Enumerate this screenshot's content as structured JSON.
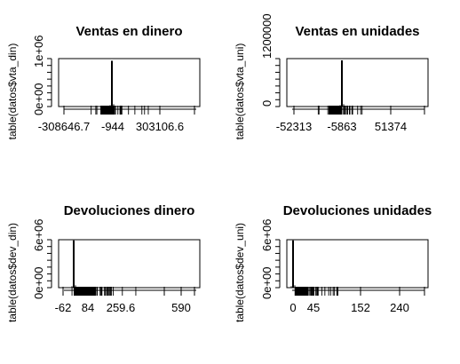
{
  "chart_data": [
    {
      "type": "bar",
      "title": "Ventas en dinero",
      "ylabel": "table(datos$vta_din)",
      "xlabel": "",
      "x_tick_labels": [
        "-308646.7",
        "-944",
        "303106.6"
      ],
      "y_tick_labels": [
        "0e+00",
        "1e+06"
      ],
      "ylim": [
        0,
        1100000
      ],
      "spike": {
        "x_label": "-944",
        "value": 1050000
      },
      "grid": false,
      "legend": "none"
    },
    {
      "type": "bar",
      "title": "Ventas en unidades",
      "ylabel": "table(datos$vta_uni)",
      "xlabel": "",
      "x_tick_labels": [
        "-52313",
        "-5863",
        "51374"
      ],
      "y_tick_labels": [
        "0",
        "1200000"
      ],
      "ylim": [
        0,
        1400000
      ],
      "spike": {
        "x_label": "-5863",
        "value": 1350000
      },
      "grid": false,
      "legend": "none"
    },
    {
      "type": "bar",
      "title": "Devoluciones dinero",
      "ylabel": "table(datos$dev_din)",
      "xlabel": "",
      "x_tick_labels": [
        "-62",
        "84",
        "259.6",
        "590"
      ],
      "y_tick_labels": [
        "0e+00",
        "6e+06"
      ],
      "ylim": [
        0,
        7000000
      ],
      "spike": {
        "x_label": "0",
        "value": 6900000
      },
      "grid": false,
      "legend": "none"
    },
    {
      "type": "bar",
      "title": "Devoluciones unidades",
      "ylabel": "table(datos$dev_uni)",
      "xlabel": "",
      "x_tick_labels": [
        "0",
        "45",
        "152",
        "240"
      ],
      "y_tick_labels": [
        "0e+00",
        "6e+06"
      ],
      "ylim": [
        0,
        7000000
      ],
      "spike": {
        "x_label": "0",
        "value": 6900000
      },
      "grid": false,
      "legend": "none"
    }
  ]
}
